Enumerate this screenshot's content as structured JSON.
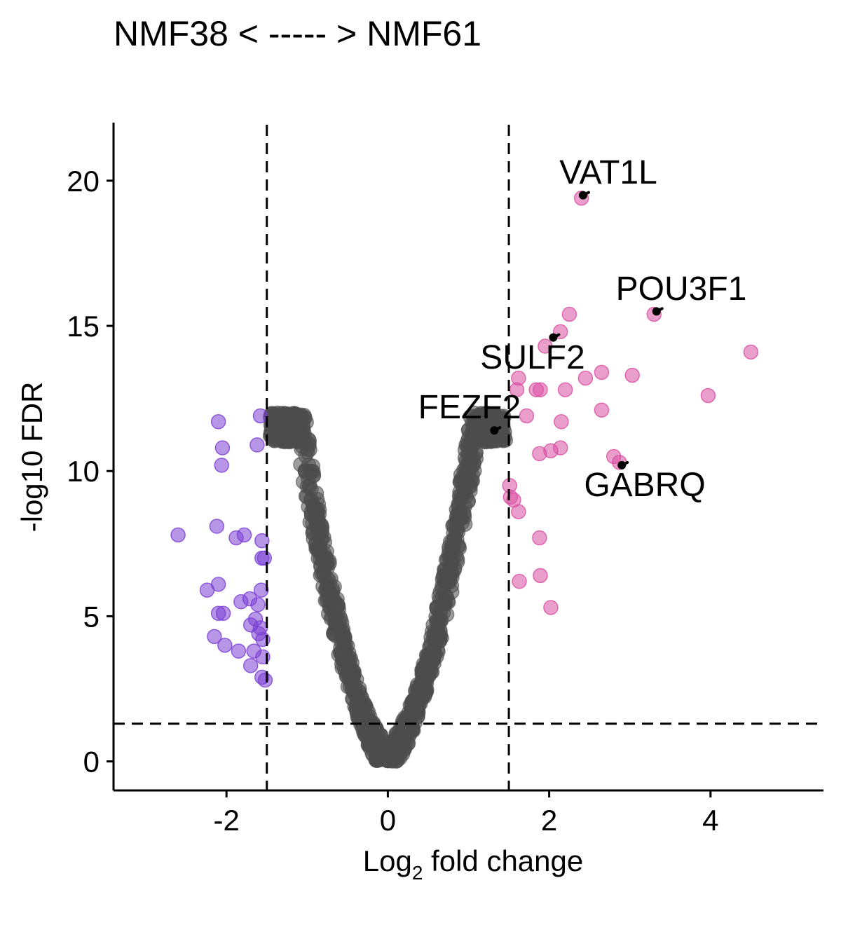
{
  "chart_data": {
    "type": "scatter",
    "title": "NMF38 < ----- > NMF61",
    "xlabel_base": "Log",
    "xlabel_sub": "2",
    "xlabel_rest": " fold change",
    "ylabel": "-log10 FDR",
    "xlim": [
      -3.4,
      5.4
    ],
    "ylim": [
      -1,
      22
    ],
    "xticks": [
      -2,
      0,
      2,
      4
    ],
    "yticks": [
      0,
      5,
      10,
      15,
      20
    ],
    "thresholds": {
      "x": [
        -1.5,
        1.5
      ],
      "y": 1.3
    },
    "grid": false,
    "legend": "none",
    "colors": {
      "down": "#7B3FD4",
      "up": "#D94FA2",
      "ns": "#4D4D4D",
      "label_line": "#000000"
    },
    "series": [
      {
        "group": "down",
        "points": [
          [
            -2.1,
            11.7
          ],
          [
            -1.58,
            11.9
          ],
          [
            -2.05,
            10.8
          ],
          [
            -1.62,
            10.9
          ],
          [
            -2.06,
            10.2
          ],
          [
            -2.6,
            7.8
          ],
          [
            -2.12,
            8.1
          ],
          [
            -1.88,
            7.7
          ],
          [
            -1.78,
            7.8
          ],
          [
            -1.56,
            7.6
          ],
          [
            -1.56,
            7.0
          ],
          [
            -1.53,
            7.0
          ],
          [
            -2.24,
            5.9
          ],
          [
            -2.1,
            6.1
          ],
          [
            -1.82,
            5.5
          ],
          [
            -1.71,
            5.6
          ],
          [
            -1.57,
            5.9
          ],
          [
            -1.61,
            5.4
          ],
          [
            -2.1,
            5.1
          ],
          [
            -2.04,
            5.1
          ],
          [
            -1.7,
            4.7
          ],
          [
            -1.64,
            4.9
          ],
          [
            -1.58,
            4.6
          ],
          [
            -1.55,
            4.2
          ],
          [
            -1.6,
            4.4
          ],
          [
            -2.15,
            4.3
          ],
          [
            -2.02,
            4.0
          ],
          [
            -1.85,
            3.8
          ],
          [
            -1.66,
            3.8
          ],
          [
            -1.7,
            3.3
          ],
          [
            -1.55,
            3.6
          ],
          [
            -1.52,
            2.8
          ],
          [
            -1.56,
            2.9
          ]
        ]
      },
      {
        "group": "up",
        "points": [
          [
            2.4,
            19.4
          ],
          [
            2.25,
            15.4
          ],
          [
            3.3,
            15.4
          ],
          [
            2.14,
            14.8
          ],
          [
            1.95,
            14.3
          ],
          [
            4.5,
            14.1
          ],
          [
            1.62,
            13.2
          ],
          [
            2.45,
            13.2
          ],
          [
            2.65,
            13.4
          ],
          [
            3.03,
            13.3
          ],
          [
            1.6,
            12.8
          ],
          [
            1.84,
            12.8
          ],
          [
            1.89,
            12.8
          ],
          [
            2.2,
            12.8
          ],
          [
            3.97,
            12.6
          ],
          [
            1.72,
            11.9
          ],
          [
            2.15,
            11.7
          ],
          [
            2.65,
            12.1
          ],
          [
            1.88,
            10.6
          ],
          [
            2.02,
            10.7
          ],
          [
            2.14,
            10.8
          ],
          [
            2.8,
            10.5
          ],
          [
            2.87,
            10.3
          ],
          [
            1.51,
            9.5
          ],
          [
            1.52,
            9.1
          ],
          [
            1.56,
            9.0
          ],
          [
            1.62,
            8.6
          ],
          [
            1.88,
            7.7
          ],
          [
            1.89,
            6.4
          ],
          [
            1.63,
            6.2
          ],
          [
            2.02,
            5.3
          ]
        ]
      }
    ],
    "labels": [
      {
        "text": "VAT1L",
        "x": 2.42,
        "y": 19.5
      },
      {
        "text": "POU3F1",
        "x": 3.33,
        "y": 15.5
      },
      {
        "text": "SULF2",
        "x": 2.05,
        "y": 14.6
      },
      {
        "text": "FEZF2",
        "x": 1.32,
        "y": 11.4
      },
      {
        "text": "GABRQ",
        "x": 2.9,
        "y": 10.2
      }
    ]
  }
}
